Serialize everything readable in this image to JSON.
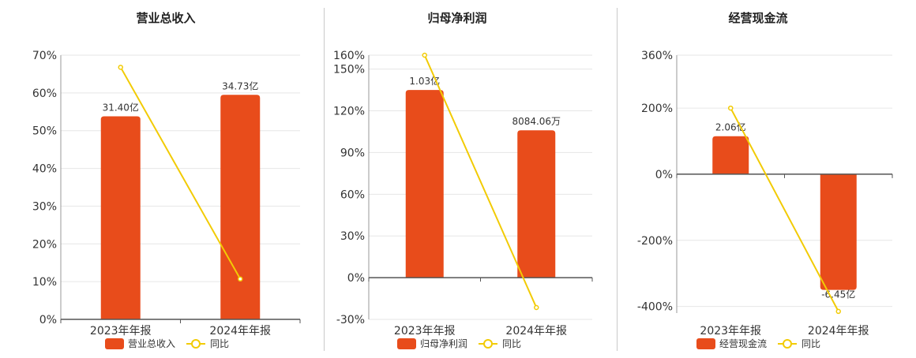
{
  "chart_data": [
    {
      "type": "bar",
      "title": "营业总收入",
      "categories": [
        "2023年年报",
        "2024年年报"
      ],
      "series": [
        {
          "name": "营业总收入",
          "kind": "bar",
          "values": [
            31.4,
            34.73
          ],
          "labels": [
            "31.40亿",
            "34.73亿"
          ],
          "color": "#e84c1b"
        },
        {
          "name": "同比",
          "kind": "line",
          "values": [
            66.8,
            10.7
          ],
          "color": "#f2cb05"
        }
      ],
      "y_axis": {
        "min": 0,
        "max": 70,
        "ticks": [
          0,
          10,
          20,
          30,
          40,
          50,
          60,
          70
        ],
        "unit": "%"
      },
      "bar_heights_pct": [
        53.8,
        59.5
      ],
      "grid": true,
      "legend": "bottom"
    },
    {
      "type": "bar",
      "title": "归母净利润",
      "categories": [
        "2023年年报",
        "2024年年报"
      ],
      "series": [
        {
          "name": "归母净利润",
          "kind": "bar",
          "values": [
            1.03,
            0.8084
          ],
          "labels": [
            "1.03亿",
            "8084.06万"
          ],
          "color": "#e84c1b"
        },
        {
          "name": "同比",
          "kind": "line",
          "values": [
            160,
            -21.5
          ],
          "color": "#f2cb05"
        }
      ],
      "y_axis": {
        "min": -30,
        "max": 160,
        "ticks": [
          -30,
          0,
          30,
          60,
          90,
          120,
          150,
          160
        ],
        "unit": "%"
      },
      "bar_heights_pct": [
        135,
        106
      ],
      "grid": true,
      "legend": "bottom"
    },
    {
      "type": "bar",
      "title": "经营现金流",
      "categories": [
        "2023年年报",
        "2024年年报"
      ],
      "series": [
        {
          "name": "经营现金流",
          "kind": "bar",
          "values": [
            2.06,
            -6.45
          ],
          "labels": [
            "2.06亿",
            "-6.45亿"
          ],
          "color": "#e84c1b"
        },
        {
          "name": "同比",
          "kind": "line",
          "values": [
            200,
            -415
          ],
          "color": "#f2cb05"
        }
      ],
      "y_axis": {
        "min": -420,
        "max": 360,
        "ticks": [
          -400,
          -200,
          0,
          200,
          360
        ],
        "unit": "%"
      },
      "bar_heights_pct": [
        115,
        -350
      ],
      "grid": true,
      "legend": "bottom"
    }
  ]
}
